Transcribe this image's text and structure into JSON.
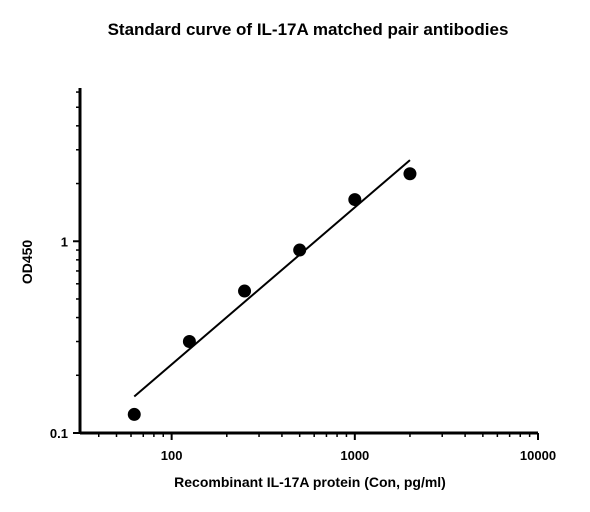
{
  "chart_data": {
    "type": "scatter",
    "title": "Standard curve of IL-17A matched pair antibodies",
    "xlabel": "Recombinant IL-17A protein (Con, pg/ml)",
    "ylabel": "OD450",
    "xscale": "log",
    "yscale": "log",
    "xlim": [
      31.6,
      10000
    ],
    "ylim": [
      0.1,
      6.3
    ],
    "x_ticks": [
      {
        "value": 100,
        "label": "100"
      },
      {
        "value": 1000,
        "label": "1000"
      },
      {
        "value": 10000,
        "label": "10000"
      }
    ],
    "y_ticks": [
      {
        "value": 0.1,
        "label": "0.1"
      },
      {
        "value": 1,
        "label": "1"
      }
    ],
    "grid": false,
    "series": [
      {
        "points": [
          {
            "x": 62.5,
            "y": 0.125
          },
          {
            "x": 125,
            "y": 0.3
          },
          {
            "x": 250,
            "y": 0.55
          },
          {
            "x": 500,
            "y": 0.9
          },
          {
            "x": 1000,
            "y": 1.65
          },
          {
            "x": 2000,
            "y": 2.25
          }
        ],
        "color": "#000000"
      }
    ],
    "fit_line": {
      "x": [
        62.5,
        2000
      ],
      "y": [
        0.155,
        2.65
      ]
    }
  }
}
